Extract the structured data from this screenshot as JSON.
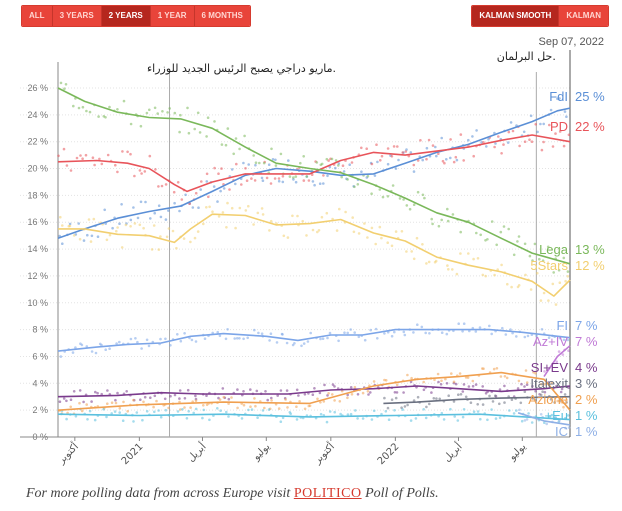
{
  "controls": {
    "range_buttons": [
      {
        "label": "ALL",
        "active": false
      },
      {
        "label": "3 YEARS",
        "active": false
      },
      {
        "label": "2 YEARS",
        "active": true
      },
      {
        "label": "1 YEAR",
        "active": false
      },
      {
        "label": "6 MONTHS",
        "active": false
      }
    ],
    "smooth_buttons": [
      {
        "label": "KALMAN SMOOTH",
        "active": true
      },
      {
        "label": "KALMAN",
        "active": false
      }
    ]
  },
  "footer": {
    "text_before": "For more polling data from across Europe visit",
    "brand": "POLITICO",
    "text_after": "Poll of Polls."
  },
  "chart_data": {
    "type": "line",
    "title": "",
    "xlabel": "",
    "ylabel": "",
    "ylim": [
      0,
      27
    ],
    "xlim": [
      "2020-09-07",
      "2022-09-07"
    ],
    "y_ticks": [
      "0 %",
      "2 %",
      "4 %",
      "6 %",
      "8 %",
      "10 %",
      "12 %",
      "14 %",
      "16 %",
      "18 %",
      "20 %",
      "22 %",
      "24 %",
      "26 %"
    ],
    "x_ticks": [
      {
        "label": "أكتوبر",
        "date": "2020-10-01"
      },
      {
        "label": "2021",
        "date": "2021-01-01"
      },
      {
        "label": "أبريل",
        "date": "2021-04-01"
      },
      {
        "label": "يوليو",
        "date": "2021-07-01"
      },
      {
        "label": "أكتوبر",
        "date": "2021-10-01"
      },
      {
        "label": "2022",
        "date": "2022-01-01"
      },
      {
        "label": "أبريل",
        "date": "2022-04-01"
      },
      {
        "label": "يوليو",
        "date": "2022-07-01"
      }
    ],
    "grid": true,
    "current_date_label": "Sep 07, 2022",
    "annotations": [
      {
        "date": "2021-02-13",
        "text": "ماريو دراجي يصبح الرئيس الجديد للوزراء."
      },
      {
        "date": "2022-07-21",
        "text": "حل البرلمان."
      }
    ],
    "series": [
      {
        "name": "FdI",
        "end_label": "25 %",
        "color": "#5b8fd6",
        "points": [
          [
            "2020-09-07",
            14.8
          ],
          [
            "2020-10-15",
            15.5
          ],
          [
            "2020-12-01",
            16.3
          ],
          [
            "2021-01-15",
            16.8
          ],
          [
            "2021-03-01",
            17.2
          ],
          [
            "2021-04-15",
            18.3
          ],
          [
            "2021-06-01",
            19.5
          ],
          [
            "2021-07-15",
            20.0
          ],
          [
            "2021-09-01",
            19.8
          ],
          [
            "2021-10-15",
            19.5
          ],
          [
            "2021-12-01",
            19.6
          ],
          [
            "2022-01-15",
            20.4
          ],
          [
            "2022-03-01",
            21.2
          ],
          [
            "2022-04-15",
            21.8
          ],
          [
            "2022-06-01",
            22.7
          ],
          [
            "2022-07-15",
            23.5
          ],
          [
            "2022-08-20",
            24.3
          ],
          [
            "2022-09-07",
            24.5
          ]
        ]
      },
      {
        "name": "PD",
        "end_label": "22 %",
        "color": "#e8545a",
        "points": [
          [
            "2020-09-07",
            20.5
          ],
          [
            "2020-11-01",
            20.6
          ],
          [
            "2020-12-15",
            20.4
          ],
          [
            "2021-01-15",
            20.0
          ],
          [
            "2021-02-20",
            18.8
          ],
          [
            "2021-03-10",
            18.3
          ],
          [
            "2021-04-15",
            19.0
          ],
          [
            "2021-06-01",
            19.6
          ],
          [
            "2021-07-15",
            19.6
          ],
          [
            "2021-09-01",
            19.6
          ],
          [
            "2021-10-15",
            20.6
          ],
          [
            "2021-12-01",
            21.2
          ],
          [
            "2022-01-15",
            21.0
          ],
          [
            "2022-03-01",
            21.3
          ],
          [
            "2022-04-15",
            21.6
          ],
          [
            "2022-06-01",
            22.1
          ],
          [
            "2022-07-15",
            22.5
          ],
          [
            "2022-09-07",
            22.0
          ]
        ]
      },
      {
        "name": "Lega",
        "end_label": "13 %",
        "color": "#7ab85a",
        "points": [
          [
            "2020-09-07",
            26.0
          ],
          [
            "2020-10-15",
            25.0
          ],
          [
            "2020-12-01",
            24.2
          ],
          [
            "2021-01-15",
            23.8
          ],
          [
            "2021-03-01",
            23.7
          ],
          [
            "2021-04-15",
            23.0
          ],
          [
            "2021-06-01",
            21.6
          ],
          [
            "2021-07-15",
            20.4
          ],
          [
            "2021-09-01",
            20.0
          ],
          [
            "2021-10-15",
            19.7
          ],
          [
            "2021-12-01",
            18.8
          ],
          [
            "2022-01-15",
            17.8
          ],
          [
            "2022-03-01",
            16.7
          ],
          [
            "2022-04-15",
            16.0
          ],
          [
            "2022-06-01",
            14.8
          ],
          [
            "2022-07-15",
            13.7
          ],
          [
            "2022-09-07",
            12.9
          ]
        ]
      },
      {
        "name": "5Stars",
        "end_label": "12 %",
        "color": "#f2cf70",
        "points": [
          [
            "2020-09-07",
            15.5
          ],
          [
            "2020-10-15",
            15.5
          ],
          [
            "2020-12-01",
            15.1
          ],
          [
            "2021-01-15",
            15.0
          ],
          [
            "2021-02-20",
            14.5
          ],
          [
            "2021-03-15",
            15.5
          ],
          [
            "2021-04-15",
            16.6
          ],
          [
            "2021-06-01",
            16.5
          ],
          [
            "2021-07-15",
            15.8
          ],
          [
            "2021-09-01",
            15.9
          ],
          [
            "2021-10-15",
            16.2
          ],
          [
            "2021-12-01",
            15.2
          ],
          [
            "2022-01-15",
            14.6
          ],
          [
            "2022-03-01",
            13.4
          ],
          [
            "2022-04-15",
            12.8
          ],
          [
            "2022-06-01",
            12.3
          ],
          [
            "2022-07-15",
            11.6
          ],
          [
            "2022-08-15",
            10.5
          ],
          [
            "2022-09-07",
            11.7
          ]
        ]
      },
      {
        "name": "FI",
        "end_label": "7 %",
        "color": "#7ca5e8",
        "points": [
          [
            "2020-09-07",
            6.4
          ],
          [
            "2020-11-01",
            6.7
          ],
          [
            "2020-12-15",
            6.9
          ],
          [
            "2021-02-01",
            7.0
          ],
          [
            "2021-03-15",
            7.5
          ],
          [
            "2021-05-01",
            7.7
          ],
          [
            "2021-07-01",
            7.5
          ],
          [
            "2021-08-15",
            7.2
          ],
          [
            "2021-10-01",
            7.6
          ],
          [
            "2021-11-15",
            7.6
          ],
          [
            "2022-01-01",
            8.0
          ],
          [
            "2022-02-15",
            8.0
          ],
          [
            "2022-04-01",
            8.0
          ],
          [
            "2022-05-15",
            8.0
          ],
          [
            "2022-07-01",
            7.8
          ],
          [
            "2022-09-07",
            7.4
          ]
        ]
      },
      {
        "name": "Az+IV",
        "end_label": "7 %",
        "color": "#c07ad6",
        "points": [
          [
            "2022-08-01",
            4.5
          ],
          [
            "2022-08-20",
            6.0
          ],
          [
            "2022-09-07",
            6.8
          ]
        ]
      },
      {
        "name": "SI+EV",
        "end_label": "4 %",
        "color": "#7a3a8c",
        "points": [
          [
            "2020-09-07",
            3.0
          ],
          [
            "2020-12-01",
            3.1
          ],
          [
            "2021-02-01",
            3.3
          ],
          [
            "2021-04-01",
            3.2
          ],
          [
            "2021-06-01",
            3.2
          ],
          [
            "2021-08-01",
            3.2
          ],
          [
            "2021-10-01",
            3.5
          ],
          [
            "2021-12-01",
            3.6
          ],
          [
            "2022-02-01",
            3.8
          ],
          [
            "2022-04-01",
            3.6
          ],
          [
            "2022-06-01",
            3.4
          ],
          [
            "2022-08-01",
            3.6
          ],
          [
            "2022-09-07",
            3.8
          ]
        ]
      },
      {
        "name": "Italexit",
        "end_label": "3 %",
        "color": "#6a7080",
        "points": [
          [
            "2021-12-15",
            2.5
          ],
          [
            "2022-02-01",
            2.6
          ],
          [
            "2022-04-01",
            2.8
          ],
          [
            "2022-06-01",
            2.9
          ],
          [
            "2022-09-07",
            3.0
          ]
        ]
      },
      {
        "name": "Azione",
        "end_label": "2 %",
        "color": "#f0a050",
        "points": [
          [
            "2020-09-07",
            2.0
          ],
          [
            "2021-01-01",
            2.4
          ],
          [
            "2021-05-01",
            2.6
          ],
          [
            "2021-09-01",
            2.5
          ],
          [
            "2021-12-01",
            3.8
          ],
          [
            "2022-02-01",
            4.3
          ],
          [
            "2022-04-01",
            4.5
          ],
          [
            "2022-06-01",
            4.8
          ],
          [
            "2022-08-01",
            4.3
          ],
          [
            "2022-09-07",
            2.0
          ]
        ]
      },
      {
        "name": "+Eu",
        "end_label": "1 %",
        "color": "#5bc0de",
        "points": [
          [
            "2020-09-07",
            1.7
          ],
          [
            "2021-01-01",
            1.6
          ],
          [
            "2021-05-01",
            1.7
          ],
          [
            "2021-09-01",
            1.5
          ],
          [
            "2022-01-01",
            1.6
          ],
          [
            "2022-05-01",
            1.7
          ],
          [
            "2022-09-07",
            1.3
          ]
        ]
      },
      {
        "name": "IC",
        "end_label": "1 %",
        "color": "#8fb0e6",
        "points": [
          [
            "2022-06-25",
            1.8
          ],
          [
            "2022-08-01",
            1.2
          ],
          [
            "2022-09-07",
            0.9
          ]
        ]
      }
    ]
  }
}
